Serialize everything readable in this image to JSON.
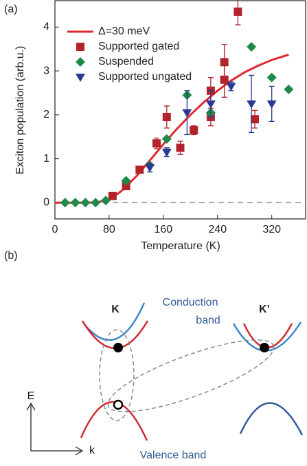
{
  "chart_data": {
    "type": "scatter",
    "panel_label": "(a)",
    "x_label": "Temperature (K)",
    "y_label": "Exciton population (arb.u.)",
    "xlim": [
      0,
      370
    ],
    "ylim": [
      -0.37,
      4.6
    ],
    "xticks": [
      0,
      80,
      160,
      240,
      320
    ],
    "yticks": [
      0,
      1,
      2,
      3,
      4
    ],
    "reference_line": 0,
    "series": [
      {
        "name": "Δ=30 meV",
        "color": "#e3262b",
        "marker": "line",
        "x": [
          0,
          50,
          60,
          70,
          80,
          90,
          100,
          120,
          140,
          160,
          180,
          200,
          220,
          240,
          260,
          280,
          300,
          320,
          345
        ],
        "values": [
          0,
          0,
          0.01,
          0.03,
          0.08,
          0.17,
          0.29,
          0.6,
          0.96,
          1.33,
          1.68,
          2.0,
          2.29,
          2.55,
          2.78,
          2.97,
          3.12,
          3.25,
          3.37
        ]
      },
      {
        "name": "Supported gated",
        "color": "#b3232b",
        "marker": "square",
        "x": [
          85,
          105,
          125,
          150,
          165,
          185,
          205,
          230,
          230,
          250,
          250,
          270,
          295
        ],
        "values": [
          0.15,
          0.38,
          0.75,
          1.35,
          1.95,
          1.25,
          1.65,
          2.55,
          1.95,
          2.8,
          3.2,
          4.35,
          1.9
        ],
        "errors": [
          null,
          null,
          null,
          0.12,
          0.25,
          0.15,
          0.1,
          0.3,
          0.2,
          0.4,
          0.4,
          0.3,
          0.2
        ]
      },
      {
        "name": "Suspended",
        "color": "#1e8a4a",
        "marker": "diamond",
        "x": [
          15,
          30,
          45,
          60,
          75,
          105,
          140,
          165,
          195,
          230,
          290,
          320,
          345
        ],
        "values": [
          0,
          0,
          0,
          0,
          0.05,
          0.5,
          0.85,
          1.45,
          2.45,
          2.05,
          3.55,
          2.85,
          2.58
        ],
        "errors": [
          null,
          null,
          null,
          null,
          null,
          null,
          null,
          null,
          null,
          null,
          null,
          null,
          null
        ]
      },
      {
        "name": "Supported ungated",
        "color": "#2b3990",
        "marker": "triangle",
        "x": [
          140,
          165,
          195,
          230,
          260,
          290,
          320
        ],
        "values": [
          0.8,
          1.15,
          2.05,
          2.25,
          2.65,
          2.25,
          2.25
        ],
        "errors": [
          0.1,
          0.1,
          0.5,
          0.3,
          0.1,
          0.65,
          0.4
        ]
      }
    ]
  },
  "diagram": {
    "panel_label": "(b)",
    "valley_left": "K",
    "valley_right": "K’",
    "conduction_line1": "Conduction",
    "conduction_line2": "band",
    "valence": "Valence band",
    "energy_axis": "E",
    "momentum_axis": "k"
  }
}
